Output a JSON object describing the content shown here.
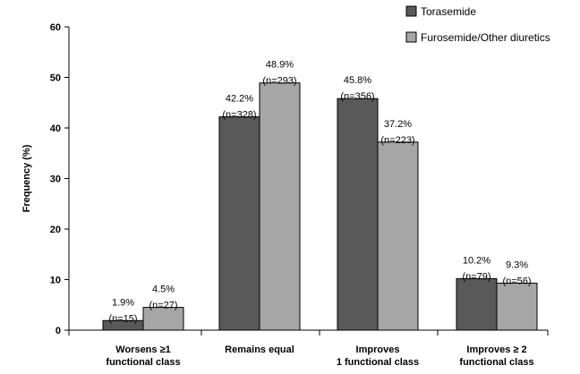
{
  "chart_data": {
    "type": "bar",
    "categories": [
      [
        "Worsens  ≥1",
        "functional class"
      ],
      [
        "Remains equal"
      ],
      [
        "Improves",
        "1 functional class"
      ],
      [
        "Improves ≥ 2",
        "functional class"
      ]
    ],
    "series": [
      {
        "name": "Torasemide",
        "color": "#595959",
        "values": [
          1.9,
          42.2,
          45.8,
          10.2
        ],
        "pct_labels": [
          "1.9%",
          "42.2%",
          "45.8%",
          "10.2%"
        ],
        "n_labels": [
          "(n=15)",
          "(n=328)",
          "(n=356)",
          "(n=79)"
        ]
      },
      {
        "name": "Furosemide/Other diuretics",
        "color": "#a6a6a6",
        "values": [
          4.5,
          48.9,
          37.2,
          9.3
        ],
        "pct_labels": [
          "4.5%",
          "48.9%",
          "37.2%",
          "9.3%"
        ],
        "n_labels": [
          "(n=27)",
          "(n=293)",
          "(n=223)",
          "(n=56)"
        ]
      }
    ],
    "ylabel": "Frequency  (%)",
    "xlabel": "",
    "ylim": [
      0,
      60
    ],
    "yticks": [
      "0",
      "10",
      "20",
      "30",
      "40",
      "50",
      "60"
    ],
    "grid": false,
    "legend": "top-right"
  }
}
